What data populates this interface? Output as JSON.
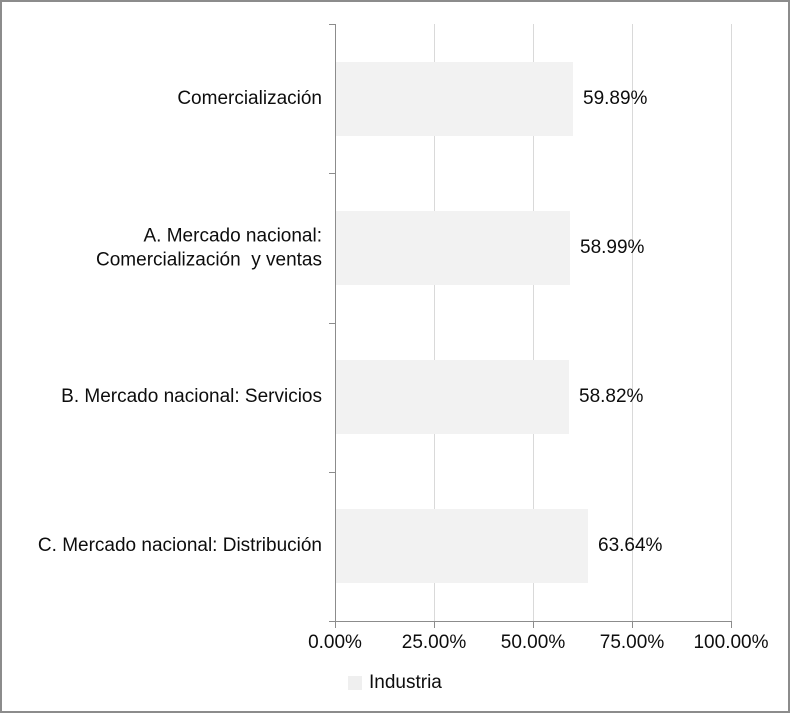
{
  "chart_data": {
    "type": "bar",
    "orientation": "horizontal",
    "title": "",
    "xlabel": "",
    "ylabel": "",
    "categories": [
      "Comercialización",
      "A. Mercado nacional:\nComercialización  y ventas",
      "B. Mercado nacional: Servicios",
      "C. Mercado nacional: Distribución"
    ],
    "series": [
      {
        "name": "Industria",
        "values": [
          59.89,
          58.99,
          58.82,
          63.64
        ]
      }
    ],
    "data_labels": [
      "59.89%",
      "58.99%",
      "58.82%",
      "63.64%"
    ],
    "xlim": [
      0,
      100
    ],
    "x_ticks": [
      {
        "value": 0,
        "label": "0.00%"
      },
      {
        "value": 25,
        "label": "25.00%"
      },
      {
        "value": 50,
        "label": "50.00%"
      },
      {
        "value": 75,
        "label": "75.00%"
      },
      {
        "value": 100,
        "label": "100.00%"
      }
    ],
    "grid": true,
    "legend": {
      "position": "bottom",
      "entries": [
        "Industria"
      ]
    },
    "colors": {
      "bar_fill": "#f2f2f2",
      "gridline": "#d9d9d9",
      "axis": "#8c8c8c",
      "text": "#0d0d0d",
      "legend_marker": "#efefef"
    }
  },
  "legend": {
    "label": "Industria"
  }
}
